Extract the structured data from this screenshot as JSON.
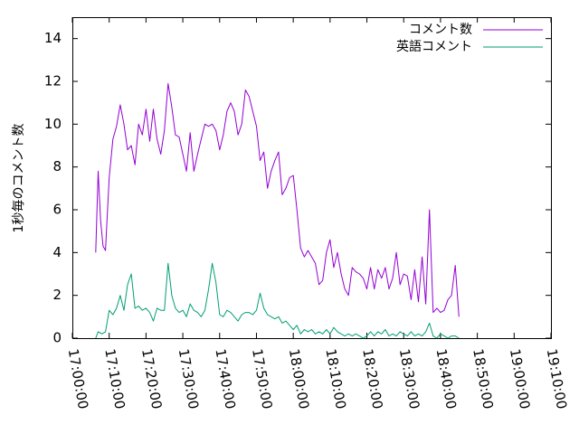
{
  "chart_data": {
    "type": "line",
    "ylabel": "1秒毎のコメント数",
    "ylim": [
      0,
      15
    ],
    "yticks": [
      0,
      2,
      4,
      6,
      8,
      10,
      12,
      14
    ],
    "xlim": [
      "17:00:00",
      "19:10:00"
    ],
    "xticks": [
      "17:00:00",
      "17:10:00",
      "17:20:00",
      "17:30:00",
      "17:40:00",
      "17:50:00",
      "18:00:00",
      "18:10:00",
      "18:20:00",
      "18:30:00",
      "18:40:00",
      "18:50:00",
      "19:00:00",
      "19:10:00"
    ],
    "legend_position": "top-right",
    "grid": false,
    "series": [
      {
        "name": "コメント数",
        "color": "#9400d3",
        "points": [
          [
            "17:06:20",
            4.0
          ],
          [
            "17:07:00",
            7.8
          ],
          [
            "17:07:40",
            5.5
          ],
          [
            "17:08:20",
            4.3
          ],
          [
            "17:09:00",
            4.1
          ],
          [
            "17:10:00",
            7.5
          ],
          [
            "17:11:00",
            9.3
          ],
          [
            "17:12:00",
            9.9
          ],
          [
            "17:13:00",
            10.9
          ],
          [
            "17:14:00",
            10.0
          ],
          [
            "17:15:00",
            8.8
          ],
          [
            "17:16:00",
            9.0
          ],
          [
            "17:17:00",
            8.1
          ],
          [
            "17:18:00",
            10.0
          ],
          [
            "17:19:00",
            9.5
          ],
          [
            "17:20:00",
            10.7
          ],
          [
            "17:21:00",
            9.2
          ],
          [
            "17:22:00",
            10.7
          ],
          [
            "17:23:00",
            9.3
          ],
          [
            "17:24:00",
            8.6
          ],
          [
            "17:25:00",
            9.7
          ],
          [
            "17:26:00",
            11.9
          ],
          [
            "17:27:00",
            10.8
          ],
          [
            "17:28:00",
            9.5
          ],
          [
            "17:29:00",
            9.4
          ],
          [
            "17:30:00",
            8.6
          ],
          [
            "17:31:00",
            7.8
          ],
          [
            "17:32:00",
            9.6
          ],
          [
            "17:33:00",
            7.8
          ],
          [
            "17:34:00",
            8.6
          ],
          [
            "17:35:00",
            9.3
          ],
          [
            "17:36:00",
            10.0
          ],
          [
            "17:37:00",
            9.9
          ],
          [
            "17:38:00",
            10.0
          ],
          [
            "17:39:00",
            9.7
          ],
          [
            "17:40:00",
            8.8
          ],
          [
            "17:41:00",
            9.5
          ],
          [
            "17:42:00",
            10.6
          ],
          [
            "17:43:00",
            11.0
          ],
          [
            "17:44:00",
            10.6
          ],
          [
            "17:45:00",
            9.5
          ],
          [
            "17:46:00",
            10.0
          ],
          [
            "17:47:00",
            11.6
          ],
          [
            "17:48:00",
            11.3
          ],
          [
            "17:49:00",
            10.6
          ],
          [
            "17:50:00",
            9.9
          ],
          [
            "17:51:00",
            8.3
          ],
          [
            "17:52:00",
            8.7
          ],
          [
            "17:53:00",
            7.0
          ],
          [
            "17:54:00",
            7.8
          ],
          [
            "17:55:00",
            8.3
          ],
          [
            "17:56:00",
            8.7
          ],
          [
            "17:57:00",
            6.7
          ],
          [
            "17:58:00",
            7.0
          ],
          [
            "17:59:00",
            7.5
          ],
          [
            "18:00:00",
            7.6
          ],
          [
            "18:01:00",
            6.0
          ],
          [
            "18:02:00",
            4.2
          ],
          [
            "18:03:00",
            3.8
          ],
          [
            "18:04:00",
            4.1
          ],
          [
            "18:05:00",
            3.8
          ],
          [
            "18:06:00",
            3.5
          ],
          [
            "18:07:00",
            2.5
          ],
          [
            "18:08:00",
            2.7
          ],
          [
            "18:09:00",
            4.0
          ],
          [
            "18:10:00",
            4.6
          ],
          [
            "18:11:00",
            3.3
          ],
          [
            "18:12:00",
            4.0
          ],
          [
            "18:13:00",
            3.0
          ],
          [
            "18:14:00",
            2.3
          ],
          [
            "18:15:00",
            2.0
          ],
          [
            "18:16:00",
            3.3
          ],
          [
            "18:17:00",
            3.1
          ],
          [
            "18:18:00",
            3.0
          ],
          [
            "18:19:00",
            2.8
          ],
          [
            "18:20:00",
            2.3
          ],
          [
            "18:21:00",
            3.3
          ],
          [
            "18:22:00",
            2.3
          ],
          [
            "18:23:00",
            3.2
          ],
          [
            "18:24:00",
            2.8
          ],
          [
            "18:25:00",
            3.3
          ],
          [
            "18:26:00",
            2.3
          ],
          [
            "18:27:00",
            2.8
          ],
          [
            "18:28:00",
            4.0
          ],
          [
            "18:29:00",
            2.5
          ],
          [
            "18:30:00",
            3.0
          ],
          [
            "18:31:00",
            2.9
          ],
          [
            "18:32:00",
            1.8
          ],
          [
            "18:33:00",
            3.2
          ],
          [
            "18:34:00",
            1.7
          ],
          [
            "18:35:00",
            3.8
          ],
          [
            "18:36:00",
            1.6
          ],
          [
            "18:37:00",
            6.0
          ],
          [
            "18:38:00",
            1.2
          ],
          [
            "18:39:00",
            1.4
          ],
          [
            "18:40:00",
            1.2
          ],
          [
            "18:41:00",
            1.3
          ],
          [
            "18:42:00",
            1.8
          ],
          [
            "18:43:00",
            2.0
          ],
          [
            "18:44:00",
            3.4
          ],
          [
            "18:45:00",
            1.0
          ]
        ]
      },
      {
        "name": "英語コメント",
        "color": "#009e73",
        "points": [
          [
            "17:06:20",
            0.0
          ],
          [
            "17:07:00",
            0.3
          ],
          [
            "17:08:00",
            0.2
          ],
          [
            "17:09:00",
            0.3
          ],
          [
            "17:10:00",
            1.3
          ],
          [
            "17:11:00",
            1.1
          ],
          [
            "17:12:00",
            1.4
          ],
          [
            "17:13:00",
            2.0
          ],
          [
            "17:14:00",
            1.3
          ],
          [
            "17:15:00",
            2.5
          ],
          [
            "17:16:00",
            3.0
          ],
          [
            "17:17:00",
            1.4
          ],
          [
            "17:18:00",
            1.5
          ],
          [
            "17:19:00",
            1.3
          ],
          [
            "17:20:00",
            1.4
          ],
          [
            "17:21:00",
            1.2
          ],
          [
            "17:22:00",
            0.8
          ],
          [
            "17:23:00",
            1.4
          ],
          [
            "17:24:00",
            1.3
          ],
          [
            "17:25:00",
            1.3
          ],
          [
            "17:26:00",
            3.5
          ],
          [
            "17:27:00",
            2.0
          ],
          [
            "17:28:00",
            1.4
          ],
          [
            "17:29:00",
            1.2
          ],
          [
            "17:30:00",
            1.3
          ],
          [
            "17:31:00",
            1.0
          ],
          [
            "17:32:00",
            1.6
          ],
          [
            "17:33:00",
            1.3
          ],
          [
            "17:34:00",
            1.2
          ],
          [
            "17:35:00",
            1.0
          ],
          [
            "17:36:00",
            1.3
          ],
          [
            "17:37:00",
            2.3
          ],
          [
            "17:38:00",
            3.5
          ],
          [
            "17:39:00",
            2.6
          ],
          [
            "17:40:00",
            1.1
          ],
          [
            "17:41:00",
            1.0
          ],
          [
            "17:42:00",
            1.3
          ],
          [
            "17:43:00",
            1.2
          ],
          [
            "17:44:00",
            1.0
          ],
          [
            "17:45:00",
            0.8
          ],
          [
            "17:46:00",
            1.1
          ],
          [
            "17:47:00",
            1.2
          ],
          [
            "17:48:00",
            1.2
          ],
          [
            "17:49:00",
            1.1
          ],
          [
            "17:50:00",
            1.3
          ],
          [
            "17:51:00",
            2.1
          ],
          [
            "17:52:00",
            1.4
          ],
          [
            "17:53:00",
            1.1
          ],
          [
            "17:54:00",
            1.0
          ],
          [
            "17:55:00",
            0.9
          ],
          [
            "17:56:00",
            1.0
          ],
          [
            "17:57:00",
            0.7
          ],
          [
            "17:58:00",
            0.8
          ],
          [
            "17:59:00",
            0.6
          ],
          [
            "18:00:00",
            0.4
          ],
          [
            "18:01:00",
            0.6
          ],
          [
            "18:02:00",
            0.2
          ],
          [
            "18:03:00",
            0.4
          ],
          [
            "18:04:00",
            0.3
          ],
          [
            "18:05:00",
            0.4
          ],
          [
            "18:06:00",
            0.2
          ],
          [
            "18:07:00",
            0.3
          ],
          [
            "18:08:00",
            0.2
          ],
          [
            "18:09:00",
            0.4
          ],
          [
            "18:10:00",
            0.2
          ],
          [
            "18:11:00",
            0.5
          ],
          [
            "18:12:00",
            0.3
          ],
          [
            "18:13:00",
            0.2
          ],
          [
            "18:14:00",
            0.1
          ],
          [
            "18:15:00",
            0.2
          ],
          [
            "18:16:00",
            0.1
          ],
          [
            "18:17:00",
            0.2
          ],
          [
            "18:18:00",
            0.1
          ],
          [
            "18:19:00",
            0.0
          ],
          [
            "18:20:00",
            0.1
          ],
          [
            "18:21:00",
            0.3
          ],
          [
            "18:22:00",
            0.1
          ],
          [
            "18:23:00",
            0.3
          ],
          [
            "18:24:00",
            0.2
          ],
          [
            "18:25:00",
            0.4
          ],
          [
            "18:26:00",
            0.1
          ],
          [
            "18:27:00",
            0.2
          ],
          [
            "18:28:00",
            0.1
          ],
          [
            "18:29:00",
            0.3
          ],
          [
            "18:30:00",
            0.2
          ],
          [
            "18:31:00",
            0.1
          ],
          [
            "18:32:00",
            0.3
          ],
          [
            "18:33:00",
            0.1
          ],
          [
            "18:34:00",
            0.2
          ],
          [
            "18:35:00",
            0.1
          ],
          [
            "18:36:00",
            0.3
          ],
          [
            "18:37:00",
            0.7
          ],
          [
            "18:38:00",
            0.1
          ],
          [
            "18:39:00",
            0.0
          ],
          [
            "18:40:00",
            0.2
          ],
          [
            "18:41:00",
            0.1
          ],
          [
            "18:42:00",
            0.0
          ],
          [
            "18:43:00",
            0.1
          ],
          [
            "18:44:00",
            0.1
          ],
          [
            "18:45:00",
            0.0
          ]
        ]
      }
    ]
  }
}
